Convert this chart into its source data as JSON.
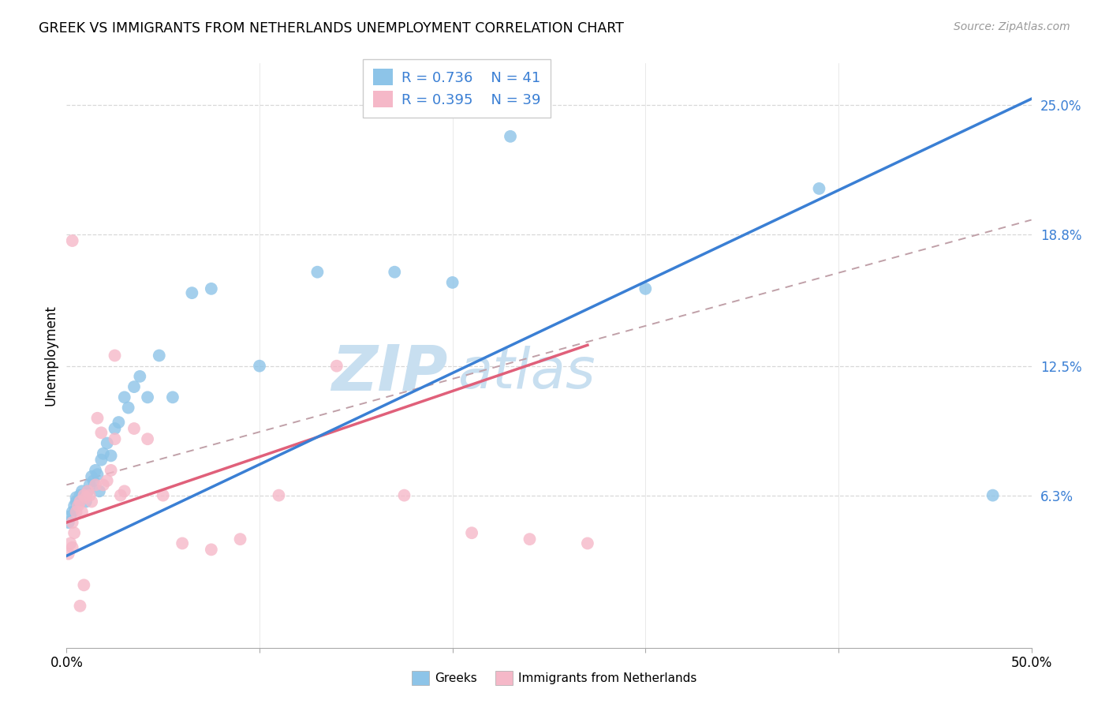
{
  "title": "GREEK VS IMMIGRANTS FROM NETHERLANDS UNEMPLOYMENT CORRELATION CHART",
  "source": "Source: ZipAtlas.com",
  "ylabel": "Unemployment",
  "ytick_labels": [
    "6.3%",
    "12.5%",
    "18.8%",
    "25.0%"
  ],
  "ytick_values": [
    0.063,
    0.125,
    0.188,
    0.25
  ],
  "xmin": 0.0,
  "xmax": 0.5,
  "ymin": -0.01,
  "ymax": 0.27,
  "legend_entry1": "R = 0.736    N = 41",
  "legend_entry2": "R = 0.395    N = 39",
  "legend_label1": "Greeks",
  "legend_label2": "Immigrants from Netherlands",
  "color_blue": "#8dc4e8",
  "color_pink": "#f5b8c8",
  "regression_blue_color": "#3a7fd4",
  "regression_pink_color": "#e0607a",
  "regression_dashed_color": "#c0a0a8",
  "watermark_zip": "ZIP",
  "watermark_atlas": "atlas",
  "watermark_color": "#c8dff0",
  "blue_scatter_x": [
    0.001,
    0.002,
    0.003,
    0.004,
    0.005,
    0.005,
    0.006,
    0.007,
    0.008,
    0.009,
    0.01,
    0.011,
    0.012,
    0.013,
    0.014,
    0.015,
    0.016,
    0.017,
    0.018,
    0.019,
    0.021,
    0.023,
    0.025,
    0.027,
    0.03,
    0.032,
    0.035,
    0.038,
    0.042,
    0.048,
    0.055,
    0.065,
    0.075,
    0.1,
    0.13,
    0.17,
    0.2,
    0.23,
    0.3,
    0.39,
    0.48
  ],
  "blue_scatter_y": [
    0.05,
    0.053,
    0.055,
    0.058,
    0.06,
    0.062,
    0.06,
    0.063,
    0.065,
    0.063,
    0.06,
    0.065,
    0.068,
    0.072,
    0.07,
    0.075,
    0.073,
    0.065,
    0.08,
    0.083,
    0.088,
    0.082,
    0.095,
    0.098,
    0.11,
    0.105,
    0.115,
    0.12,
    0.11,
    0.13,
    0.11,
    0.16,
    0.162,
    0.125,
    0.17,
    0.17,
    0.165,
    0.235,
    0.162,
    0.21,
    0.063
  ],
  "pink_scatter_x": [
    0.001,
    0.002,
    0.003,
    0.003,
    0.004,
    0.005,
    0.006,
    0.007,
    0.008,
    0.009,
    0.01,
    0.011,
    0.012,
    0.013,
    0.015,
    0.016,
    0.018,
    0.019,
    0.021,
    0.023,
    0.025,
    0.025,
    0.028,
    0.03,
    0.035,
    0.042,
    0.05,
    0.06,
    0.075,
    0.09,
    0.11,
    0.14,
    0.175,
    0.21,
    0.24,
    0.27,
    0.003,
    0.007,
    0.009
  ],
  "pink_scatter_y": [
    0.035,
    0.04,
    0.038,
    0.05,
    0.045,
    0.055,
    0.058,
    0.06,
    0.055,
    0.063,
    0.062,
    0.065,
    0.063,
    0.06,
    0.068,
    0.1,
    0.093,
    0.068,
    0.07,
    0.075,
    0.09,
    0.13,
    0.063,
    0.065,
    0.095,
    0.09,
    0.063,
    0.04,
    0.037,
    0.042,
    0.063,
    0.125,
    0.063,
    0.045,
    0.042,
    0.04,
    0.185,
    0.01,
    0.02
  ],
  "blue_line_x0": 0.0,
  "blue_line_y0": 0.034,
  "blue_line_x1": 0.5,
  "blue_line_y1": 0.253,
  "pink_line_x0": 0.0,
  "pink_line_y0": 0.05,
  "pink_line_x1": 0.27,
  "pink_line_y1": 0.135,
  "dash_line_x0": 0.0,
  "dash_line_y0": 0.068,
  "dash_line_x1": 0.5,
  "dash_line_y1": 0.195
}
